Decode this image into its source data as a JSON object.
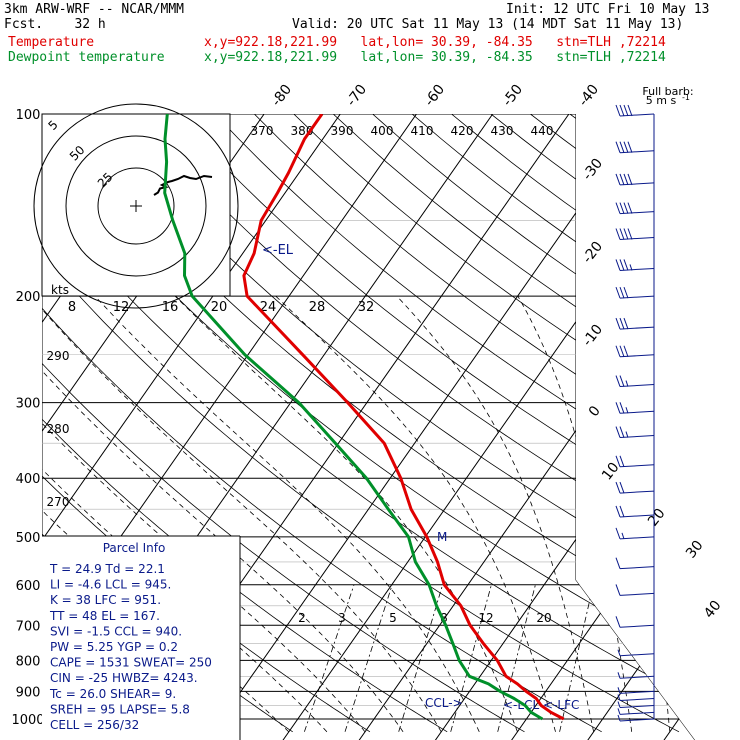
{
  "header": {
    "model": "3km ARW-WRF -- NCAR/MMM",
    "init": "Init: 12 UTC Fri 10 May 13",
    "fcst": "Fcst.    32 h",
    "valid": "Valid: 20 UTC Sat 11 May 13 (14 MDT Sat 11 May 13)",
    "temp_label": "Temperature",
    "temp_info": "x,y=922.18,221.99   lat,lon= 30.39, -84.35   stn=TLH ,72214",
    "dew_label": "Dewpoint temperature",
    "dew_info": "x,y=922.18,221.99   lat,lon= 30.39, -84.35   stn=TLH ,72214"
  },
  "colors": {
    "temperature": "#e00000",
    "dewpoint": "#00902a",
    "parcel_text": "#0a1a8a",
    "grid": "#000000"
  },
  "chart_data": {
    "type": "line",
    "title": "",
    "xlabel": "",
    "ylabel": "",
    "y_scale": "log-pressure",
    "ylim": [
      1000,
      100
    ],
    "pressure_ticks": [
      "100",
      "200",
      "300",
      "400",
      "500",
      "600",
      "700",
      "800",
      "900",
      "1000"
    ],
    "isotherm_labels": [
      "-80",
      "-70",
      "-60",
      "-50",
      "-40",
      "-30",
      "-20",
      "-10",
      "0",
      "10",
      "20",
      "30",
      "40"
    ],
    "theta_labels": [
      "370",
      "380",
      "390",
      "400",
      "410",
      "420",
      "430",
      "440"
    ],
    "theta_side_labels": [
      "290",
      "280",
      "270"
    ],
    "mixing_ratio_labels": [
      "2",
      "3",
      "5",
      "8",
      "12",
      "20"
    ],
    "hodo_speed_labels": [
      "5",
      "50",
      "25"
    ],
    "hodo_axis_unit": "kts",
    "hodo_axis_labels": [
      "8",
      "12",
      "16",
      "20",
      "24",
      "28",
      "32"
    ],
    "markers": {
      "el": "<-EL",
      "lcl": "<-LCL",
      "lfc": "<-LFC",
      "ccl": "CCL->",
      "m": "M"
    },
    "barb_legend": {
      "title": "Full barb:",
      "unit": "5 m s",
      "exp": "-1"
    },
    "series": [
      {
        "name": "Temperature",
        "points": [
          [
            1000,
            24.9
          ],
          [
            975,
            22.6
          ],
          [
            950,
            20.7
          ],
          [
            925,
            19.4
          ],
          [
            900,
            17.4
          ],
          [
            875,
            15.6
          ],
          [
            850,
            13.4
          ],
          [
            800,
            10.8
          ],
          [
            750,
            7.4
          ],
          [
            700,
            4.0
          ],
          [
            650,
            1.0
          ],
          [
            600,
            -3.1
          ],
          [
            550,
            -6.1
          ],
          [
            500,
            -9.8
          ],
          [
            450,
            -14.4
          ],
          [
            400,
            -18.6
          ],
          [
            350,
            -24.0
          ],
          [
            300,
            -32.5
          ],
          [
            250,
            -42.8
          ],
          [
            200,
            -55.5
          ],
          [
            185,
            -57.8
          ],
          [
            170,
            -58.5
          ],
          [
            150,
            -60.6
          ],
          [
            135,
            -61.0
          ],
          [
            125,
            -61.4
          ],
          [
            110,
            -62.4
          ],
          [
            100,
            -62.4
          ]
        ]
      },
      {
        "name": "Dewpoint temperature",
        "points": [
          [
            1000,
            22.1
          ],
          [
            975,
            20.0
          ],
          [
            950,
            18.6
          ],
          [
            925,
            16.5
          ],
          [
            900,
            14.0
          ],
          [
            875,
            11.8
          ],
          [
            850,
            8.6
          ],
          [
            800,
            5.8
          ],
          [
            750,
            3.4
          ],
          [
            700,
            0.8
          ],
          [
            650,
            -2.2
          ],
          [
            600,
            -5.1
          ],
          [
            550,
            -9.0
          ],
          [
            500,
            -12.2
          ],
          [
            450,
            -17.4
          ],
          [
            400,
            -23.1
          ],
          [
            350,
            -30.4
          ],
          [
            300,
            -38.9
          ],
          [
            250,
            -50.4
          ],
          [
            200,
            -62.7
          ],
          [
            185,
            -65.6
          ],
          [
            170,
            -67.6
          ],
          [
            150,
            -72.2
          ],
          [
            135,
            -75.8
          ],
          [
            120,
            -78.4
          ],
          [
            110,
            -80.7
          ],
          [
            100,
            -82.7
          ]
        ]
      }
    ]
  },
  "hodograph": {
    "points": [
      [
        -22,
        22
      ],
      [
        -18,
        27
      ],
      [
        -16,
        35
      ],
      [
        -10,
        38
      ],
      [
        -14,
        42
      ],
      [
        -8,
        48
      ],
      [
        -4,
        50
      ],
      [
        2,
        54
      ],
      [
        8,
        60
      ],
      [
        14,
        56
      ],
      [
        20,
        54
      ],
      [
        28,
        60
      ],
      [
        36,
        58
      ]
    ]
  },
  "wind_barbs": [
    {
      "p": 100,
      "spd": 40,
      "dir": 260
    },
    {
      "p": 115,
      "spd": 40,
      "dir": 260
    },
    {
      "p": 130,
      "spd": 38,
      "dir": 260
    },
    {
      "p": 145,
      "spd": 40,
      "dir": 260
    },
    {
      "p": 160,
      "spd": 38,
      "dir": 255
    },
    {
      "p": 180,
      "spd": 35,
      "dir": 255
    },
    {
      "p": 200,
      "spd": 30,
      "dir": 255
    },
    {
      "p": 225,
      "spd": 30,
      "dir": 255
    },
    {
      "p": 250,
      "spd": 30,
      "dir": 255
    },
    {
      "p": 280,
      "spd": 25,
      "dir": 255
    },
    {
      "p": 310,
      "spd": 25,
      "dir": 255
    },
    {
      "p": 340,
      "spd": 25,
      "dir": 255
    },
    {
      "p": 380,
      "spd": 22,
      "dir": 250
    },
    {
      "p": 420,
      "spd": 20,
      "dir": 250
    },
    {
      "p": 460,
      "spd": 18,
      "dir": 250
    },
    {
      "p": 500,
      "spd": 15,
      "dir": 250
    },
    {
      "p": 560,
      "spd": 12,
      "dir": 250
    },
    {
      "p": 620,
      "spd": 10,
      "dir": 245
    },
    {
      "p": 700,
      "spd": 8,
      "dir": 245
    },
    {
      "p": 780,
      "spd": 6,
      "dir": 230
    },
    {
      "p": 850,
      "spd": 5,
      "dir": 220
    },
    {
      "p": 900,
      "spd": 6,
      "dir": 220
    },
    {
      "p": 925,
      "spd": 5,
      "dir": 200
    },
    {
      "p": 950,
      "spd": 5,
      "dir": 200
    },
    {
      "p": 975,
      "spd": 3,
      "dir": 190
    },
    {
      "p": 1000,
      "spd": 3,
      "dir": 190
    }
  ],
  "parcel": {
    "title": "Parcel Info",
    "rows": [
      "T  =    24.9  Td =  22.1",
      "LI =    -4.6  LCL =  945.",
      "K  =      38  LFC =  951.",
      "TT =      48  EL  =  167.",
      "SVI =   -1.5  CCL =  940.",
      "PW =    5.25  YGP =   0.2",
      "CAPE =  1531  SWEAT=  250",
      "CIN =    -25  HWBZ= 4243.",
      "Tc =    26.0  SHEAR=    9.",
      "SREH =    95  LAPSE=   5.8",
      "CELL = 256/32"
    ]
  }
}
